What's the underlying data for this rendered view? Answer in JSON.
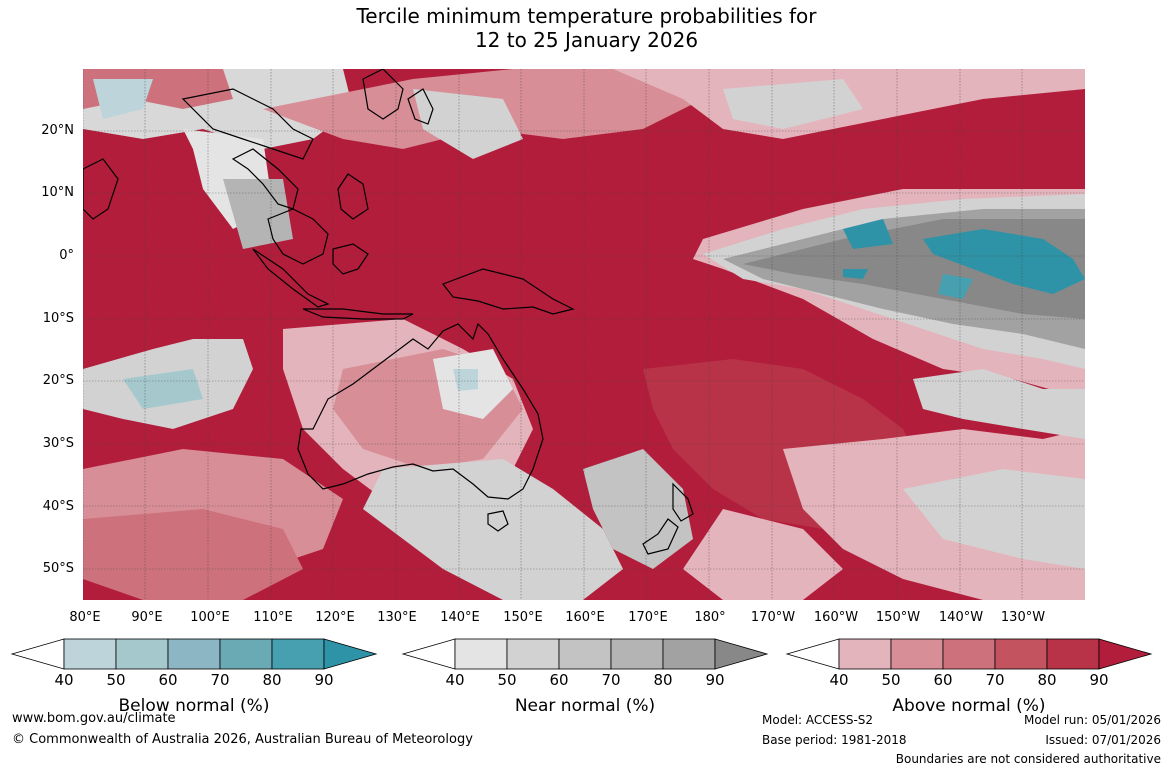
{
  "title": {
    "line1": "Tercile minimum temperature probabilities for",
    "line2": "12 to 25 January 2026"
  },
  "lat_labels": [
    "20°N",
    "10°N",
    "0°",
    "10°S",
    "20°S",
    "30°S",
    "40°S",
    "50°S"
  ],
  "lon_labels": [
    "80°E",
    "90°E",
    "100°E",
    "110°E",
    "120°E",
    "130°E",
    "140°E",
    "150°E",
    "160°E",
    "170°E",
    "180°",
    "170°W",
    "160°W",
    "150°W",
    "140°W",
    "130°W"
  ],
  "colorbars": [
    {
      "title": "Below normal (%)",
      "ticks": [
        "40",
        "50",
        "60",
        "70",
        "80",
        "90"
      ],
      "colors": [
        "#ffffff",
        "#bcd4da",
        "#a5c8cd",
        "#8cb6c3",
        "#6aaab5",
        "#46a0b0",
        "#2e93a6"
      ]
    },
    {
      "title": "Near normal (%)",
      "ticks": [
        "40",
        "50",
        "60",
        "70",
        "80",
        "90"
      ],
      "colors": [
        "#ffffff",
        "#e4e4e4",
        "#d2d2d2",
        "#c3c3c3",
        "#b4b4b4",
        "#a2a2a2",
        "#888888"
      ]
    },
    {
      "title": "Above normal (%)",
      "ticks": [
        "40",
        "50",
        "60",
        "70",
        "80",
        "90"
      ],
      "colors": [
        "#ffffff",
        "#e4b4bc",
        "#d88e97",
        "#cd727c",
        "#c2535f",
        "#b83347",
        "#b21d3b"
      ]
    }
  ],
  "footer": {
    "url": "www.bom.gov.au/climate",
    "copyright": "© Commonwealth of Australia 2026, Australian Bureau of Meteorology",
    "model": "Model: ACCESS-S2",
    "base_period": "Base period: 1981-2018",
    "model_run": "Model run: 05/01/2026",
    "issued": "Issued: 07/01/2026",
    "disclaimer": "Boundaries are not considered authoritative"
  }
}
